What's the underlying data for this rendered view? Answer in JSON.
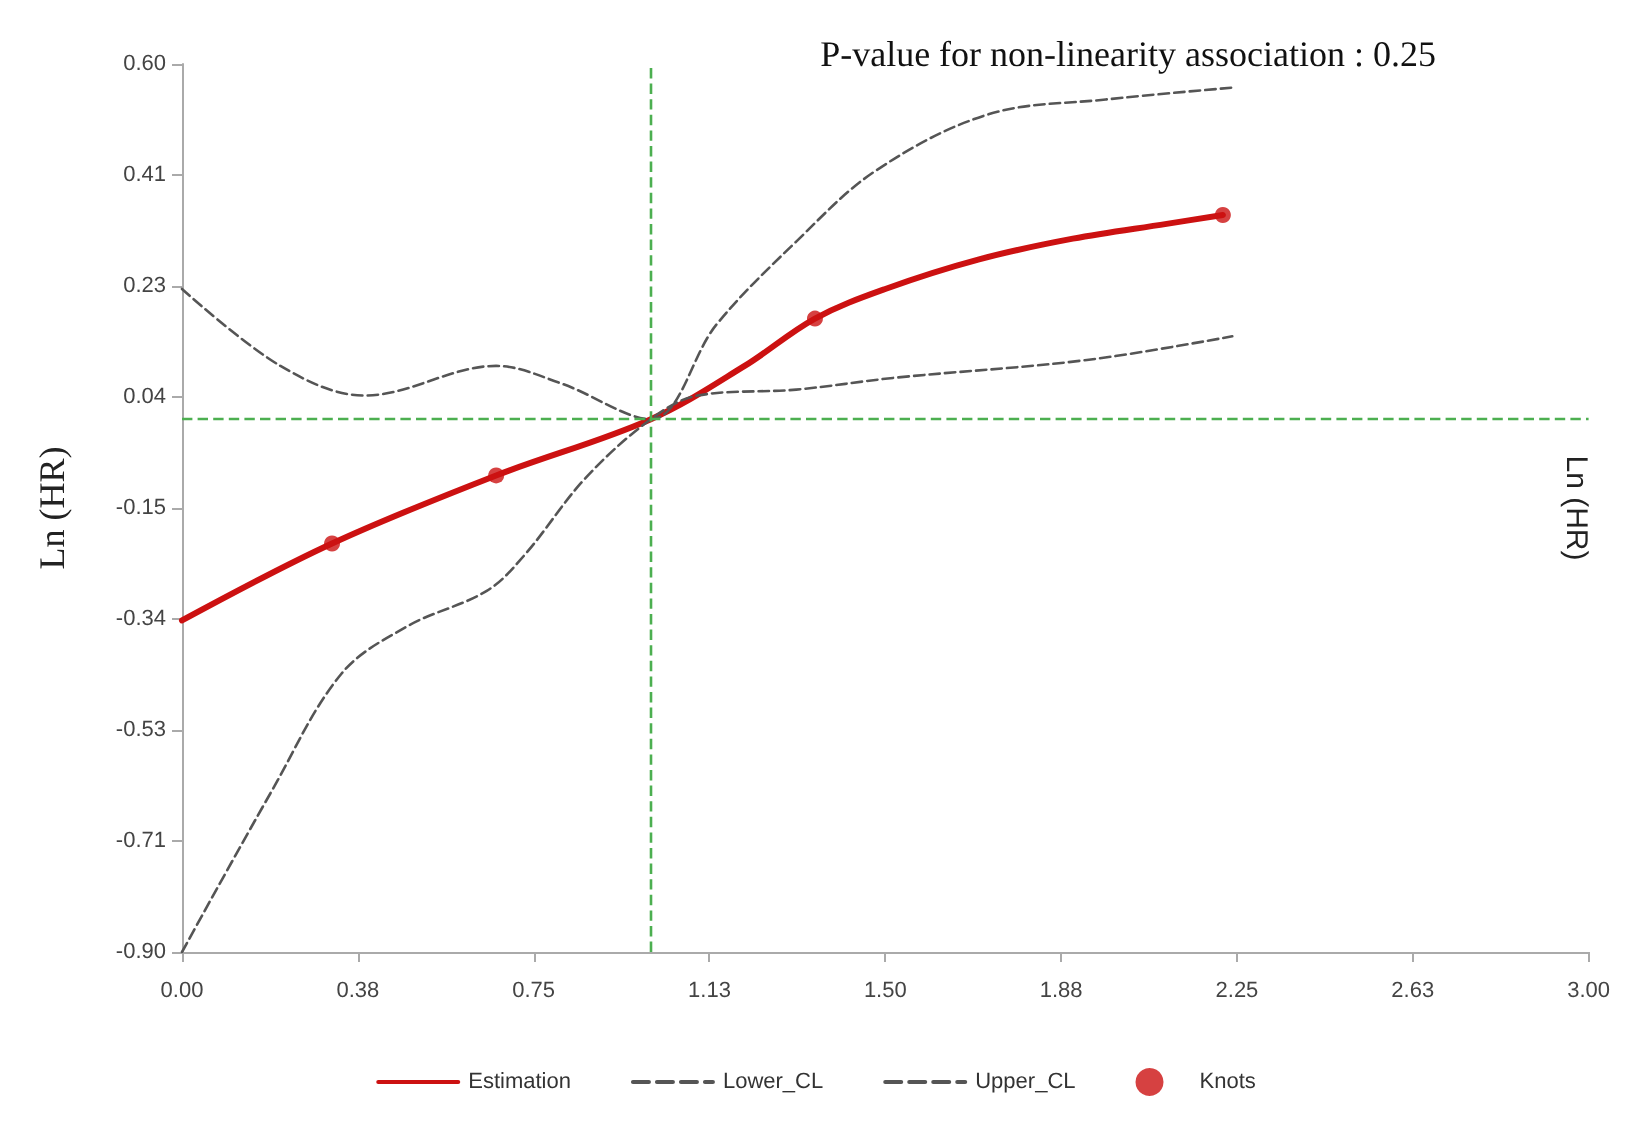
{
  "chart_data": {
    "type": "line",
    "ylabel": "Ln (HR)",
    "y2label": "Ln (HR)",
    "annotations": [
      "P-value for non-linearity association : 0.25"
    ],
    "xlim": [
      0,
      3
    ],
    "xticks": [
      {
        "value": 0,
        "label": "0.00"
      },
      {
        "value": 0.375,
        "label": "0.38"
      },
      {
        "value": 0.75,
        "label": "0.75"
      },
      {
        "value": 1.125,
        "label": "1.13"
      },
      {
        "value": 1.5,
        "label": "1.50"
      },
      {
        "value": 1.875,
        "label": "1.88"
      },
      {
        "value": 2.25,
        "label": "2.25"
      },
      {
        "value": 2.625,
        "label": "2.63"
      },
      {
        "value": 3,
        "label": "3.00"
      }
    ],
    "ylim": [
      -0.9,
      0.6
    ],
    "yticks": [
      {
        "value": -0.9,
        "label": "-0.90"
      },
      {
        "value": -0.7125,
        "label": "-0.71"
      },
      {
        "value": -0.525,
        "label": "-0.53"
      },
      {
        "value": -0.3375,
        "label": "-0.34"
      },
      {
        "value": -0.15,
        "label": "-0.15"
      },
      {
        "value": 0.0375,
        "label": "0.04"
      },
      {
        "value": 0.225,
        "label": "0.23"
      },
      {
        "value": 0.4125,
        "label": "0.41"
      },
      {
        "value": 0.6,
        "label": "0.60"
      }
    ],
    "grid": false,
    "legend": "bottom",
    "ref_lines": [
      {
        "axis": "x",
        "value": 1,
        "color": "#4caf50",
        "line_style": "dashed"
      },
      {
        "axis": "y",
        "value": 0,
        "color": "#4caf50",
        "line_style": "dashed"
      }
    ],
    "series": [
      {
        "name": "Estimation",
        "color": "#cc1111",
        "line_style": "solid",
        "marker": "none",
        "x": [
          0,
          0.32,
          0.67,
          1.0,
          1.2,
          1.35,
          1.5,
          1.7,
          1.9,
          2.1,
          2.22
        ],
        "values": [
          -0.34,
          -0.21,
          -0.095,
          0,
          0.09,
          0.17,
          0.22,
          0.27,
          0.305,
          0.33,
          0.345
        ]
      },
      {
        "name": "Lower_CL",
        "color": "#555555",
        "line_style": "dashed",
        "marker": "none",
        "x": [
          0,
          0.19,
          0.34,
          0.48,
          0.65,
          0.73,
          0.86,
          1.0,
          1.1,
          1.31,
          1.52,
          1.93,
          2.24
        ],
        "values": [
          -0.9,
          -0.63,
          -0.43,
          -0.35,
          -0.29,
          -0.23,
          -0.1,
          0,
          0.04,
          0.05,
          0.07,
          0.1,
          0.14
        ]
      },
      {
        "name": "Upper_CL",
        "color": "#555555",
        "line_style": "dashed",
        "marker": "none",
        "x": [
          0,
          0.21,
          0.39,
          0.67,
          0.81,
          1.0,
          1.14,
          1.31,
          1.48,
          1.72,
          1.97,
          2.24
        ],
        "values": [
          0.22,
          0.09,
          0.04,
          0.09,
          0.06,
          0,
          0.16,
          0.3,
          0.42,
          0.515,
          0.54,
          0.56
        ]
      },
      {
        "name": "Knots",
        "type": "scatter",
        "color": "#cc1111",
        "marker": "circle",
        "x": [
          0.32,
          0.67,
          1.35,
          2.22
        ],
        "values": [
          -0.21,
          -0.095,
          0.17,
          0.345
        ]
      }
    ]
  }
}
